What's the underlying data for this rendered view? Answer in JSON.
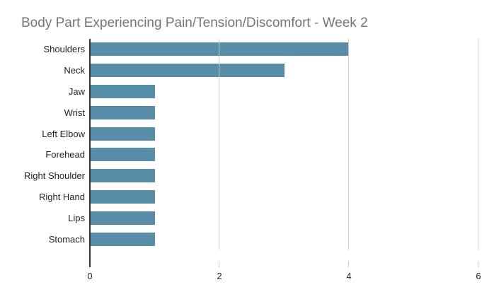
{
  "chart_data": {
    "type": "bar",
    "orientation": "horizontal",
    "title": "Body Part Experiencing Pain/Tension/Discomfort - Week 2",
    "categories": [
      "Shoulders",
      "Neck",
      "Jaw",
      "Wrist",
      "Left Elbow",
      "Forehead",
      "Right Shoulder",
      "Right Hand",
      "Lips",
      "Stomach"
    ],
    "values": [
      4,
      3,
      1,
      1,
      1,
      1,
      1,
      1,
      1,
      1
    ],
    "xlabel": "",
    "ylabel": "",
    "xlim": [
      0,
      6
    ],
    "x_ticks": [
      0,
      2,
      4,
      6
    ],
    "grid": "vertical-gridlines-at-2-4-6",
    "legend_position": "none"
  },
  "colors": {
    "bar": "#588da8",
    "title": "#757575",
    "gridline": "#cccccc",
    "axis_baseline": "#333333",
    "axis_label": "#222222",
    "background": "#ffffff"
  }
}
